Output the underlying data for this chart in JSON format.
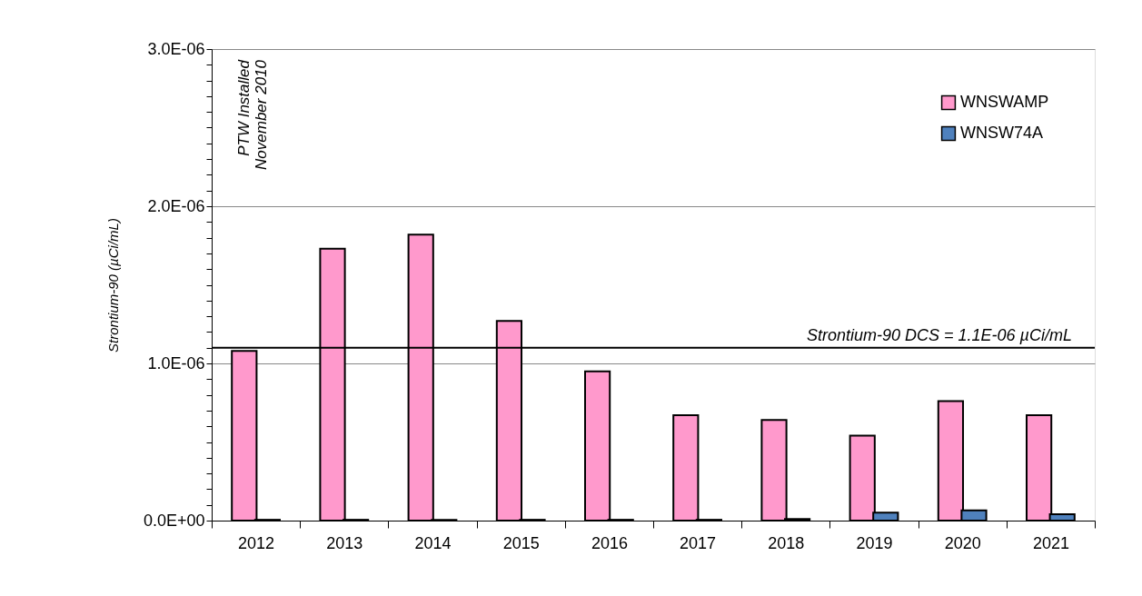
{
  "chart_data": {
    "type": "bar",
    "ylabel": "Strontium-90 (µCi/mL)",
    "categories": [
      "2012",
      "2013",
      "2014",
      "2015",
      "2016",
      "2017",
      "2018",
      "2019",
      "2020",
      "2021"
    ],
    "series": [
      {
        "name": "WNSWAMP",
        "color": "#ff99cc",
        "values": [
          1.08e-06,
          1.73e-06,
          1.82e-06,
          1.27e-06,
          9.5e-07,
          6.7e-07,
          6.4e-07,
          5.4e-07,
          7.6e-07,
          6.7e-07
        ]
      },
      {
        "name": "WNSW74A",
        "color": "#4f81bd",
        "values": [
          5e-09,
          5e-09,
          5e-09,
          5e-09,
          5e-09,
          5e-09,
          1e-08,
          5e-08,
          6.5e-08,
          4e-08
        ]
      }
    ],
    "ylim": [
      0,
      3e-06
    ],
    "yticks": [
      {
        "value": 0,
        "label": "0.0E+00"
      },
      {
        "value": 1e-07,
        "label": null
      },
      {
        "value": 2e-07,
        "label": null
      },
      {
        "value": 3e-07,
        "label": null
      },
      {
        "value": 4e-07,
        "label": null
      },
      {
        "value": 5e-07,
        "label": null
      },
      {
        "value": 6e-07,
        "label": null
      },
      {
        "value": 7e-07,
        "label": null
      },
      {
        "value": 8e-07,
        "label": null
      },
      {
        "value": 9e-07,
        "label": null
      },
      {
        "value": 1e-06,
        "label": "1.0E-06"
      },
      {
        "value": 1.1e-06,
        "label": null
      },
      {
        "value": 1.2e-06,
        "label": null
      },
      {
        "value": 1.3e-06,
        "label": null
      },
      {
        "value": 1.4e-06,
        "label": null
      },
      {
        "value": 1.5e-06,
        "label": null
      },
      {
        "value": 1.6e-06,
        "label": null
      },
      {
        "value": 1.7e-06,
        "label": null
      },
      {
        "value": 1.8e-06,
        "label": null
      },
      {
        "value": 1.9e-06,
        "label": null
      },
      {
        "value": 2e-06,
        "label": "2.0E-06"
      },
      {
        "value": 2.1e-06,
        "label": null
      },
      {
        "value": 2.2e-06,
        "label": null
      },
      {
        "value": 2.3e-06,
        "label": null
      },
      {
        "value": 2.4e-06,
        "label": null
      },
      {
        "value": 2.5e-06,
        "label": null
      },
      {
        "value": 2.6e-06,
        "label": null
      },
      {
        "value": 2.7e-06,
        "label": null
      },
      {
        "value": 2.8e-06,
        "label": null
      },
      {
        "value": 2.9e-06,
        "label": null
      },
      {
        "value": 3e-06,
        "label": "3.0E-06"
      }
    ],
    "ref_lines": [
      {
        "axis": "y",
        "value": 1.1e-06,
        "label": "Strontium-90 DCS = 1.1E-06 µCi/mL",
        "color": "#000000"
      }
    ],
    "annotations": [
      "PTW Installed\nNovember 2010"
    ],
    "grid": "y",
    "legend": "top right"
  }
}
